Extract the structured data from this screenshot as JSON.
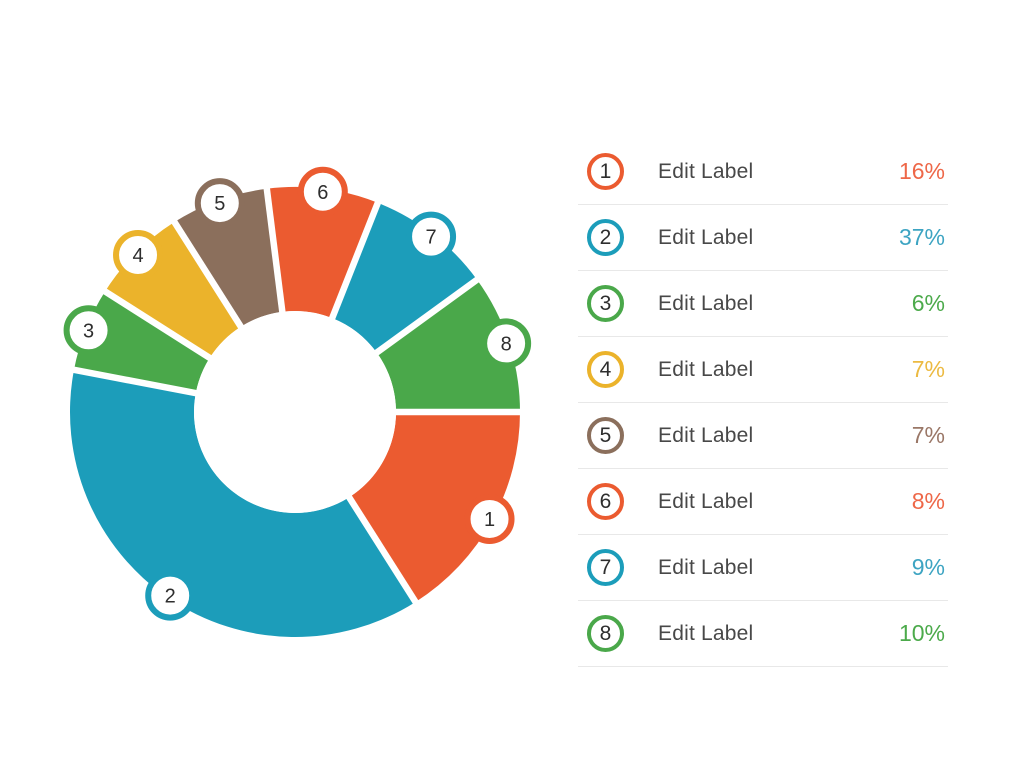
{
  "chart_data": {
    "type": "pie",
    "subtype": "donut",
    "title": "",
    "unit": "%",
    "total": 100,
    "direction": "clockwise",
    "start_angle_deg": 90,
    "inner_radius_ratio": 0.45,
    "legend_position": "right",
    "gap_color": "#FFFFFF",
    "badge_number_color": "#2E2E2E",
    "segments": [
      {
        "id": "1",
        "label": "Edit Label",
        "value": 16,
        "display": "16%",
        "color": "#EB5B30",
        "value_color": "#EE6748"
      },
      {
        "id": "2",
        "label": "Edit Label",
        "value": 37,
        "display": "37%",
        "color": "#1C9DBA",
        "value_color": "#3DA4C2"
      },
      {
        "id": "3",
        "label": "Edit Label",
        "value": 6,
        "display": "6%",
        "color": "#4AA84A",
        "value_color": "#4CAA4B"
      },
      {
        "id": "4",
        "label": "Edit Label",
        "value": 7,
        "display": "7%",
        "color": "#EBB32B",
        "value_color": "#ECBA42"
      },
      {
        "id": "5",
        "label": "Edit Label",
        "value": 7,
        "display": "7%",
        "color": "#8B6F5C",
        "value_color": "#9A7767"
      },
      {
        "id": "6",
        "label": "Edit Label",
        "value": 8,
        "display": "8%",
        "color": "#EB5B30",
        "value_color": "#EE6748"
      },
      {
        "id": "7",
        "label": "Edit Label",
        "value": 9,
        "display": "9%",
        "color": "#1C9DBA",
        "value_color": "#3DA4C2"
      },
      {
        "id": "8",
        "label": "Edit Label",
        "value": 10,
        "display": "10%",
        "color": "#4AA84A",
        "value_color": "#4CAA4B"
      }
    ]
  },
  "legend": {
    "row_divider_color": "#E8E8E8",
    "label_color": "#484848"
  }
}
